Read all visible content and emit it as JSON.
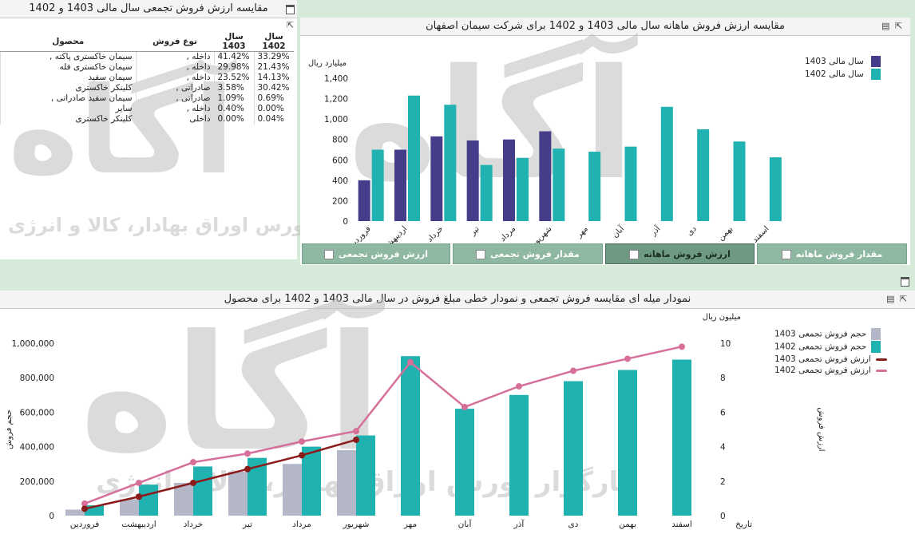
{
  "colors": {
    "c1403": "#453d8a",
    "c1402": "#20b2b0",
    "grey1403": "#b4b7c8",
    "line1403": "#8b1a1a",
    "line1402": "#d6709a",
    "tab_bg": "#8fb8a2"
  },
  "watermark": {
    "logo": "آگاه",
    "text": "کارگزار بورس اوراق بهادار، کالا و انرژی"
  },
  "left_panel": {
    "title": "مقایسه ارزش فروش تجمعی سال مالی 1403 و 1402",
    "columns": [
      "محصول",
      "نوع فروش",
      "سال 1403",
      "سال 1402"
    ],
    "rows": [
      {
        "product": "سیمان خاکستری پاکته ,",
        "type": "داخله ,",
        "v1403": "41.42%",
        "v1402": "33.29%"
      },
      {
        "product": "سیمان خاکستری فله",
        "type": "داخله ,",
        "v1403": "29.98%",
        "v1402": "21.43%"
      },
      {
        "product": "سیمان سفید",
        "type": "داخله ,",
        "v1403": "23.52%",
        "v1402": "14.13%"
      },
      {
        "product": "کلینکر خاکستری",
        "type": "صادراتی ,",
        "v1403": "3.58%",
        "v1402": "30.42%"
      },
      {
        "product": "سیمان سفید صادراتی ,",
        "type": "صادراتی ,",
        "v1403": "1.09%",
        "v1402": "0.69%"
      },
      {
        "product": "سایر",
        "type": "داخله ,",
        "v1403": "0.40%",
        "v1402": "0.00%"
      },
      {
        "product": "کلینکر خاکستری",
        "type": "داخلی",
        "v1403": "0.00%",
        "v1402": "0.04%"
      }
    ]
  },
  "right_panel": {
    "title": "مقایسه ارزش فروش ماهانه سال مالی 1403 و 1402 برای شرکت سیمان اصفهان",
    "tabs": [
      "مقدار فروش ماهانه",
      "ارزش فروش ماهانه",
      "مقدار فروش تجمعی",
      "ارزش فروش تجمعی"
    ],
    "active_tab": "ارزش فروش ماهانه"
  },
  "bottom_panel": {
    "title": "نمودار میله ای مقایسه فروش تجمعی و نمودار خطی مبلغ فروش در سال مالی 1403 و 1402 برای محصول"
  },
  "chart_data": [
    {
      "type": "bar",
      "ylabel": "میلیارد ریال",
      "xlabel": "تاریخ",
      "ylim": [
        0,
        1400
      ],
      "yticks": [
        "0",
        "200",
        "400",
        "600",
        "800",
        "1,000",
        "1,200",
        "1,400"
      ],
      "categories": [
        "فروردین",
        "اردیبهشت",
        "خرداد",
        "تیر",
        "مرداد",
        "شهریور",
        "مهر",
        "آبان",
        "آذر",
        "دی",
        "بهمن",
        "اسفند"
      ],
      "series": [
        {
          "name": "سال مالی 1403",
          "values": [
            400,
            700,
            830,
            790,
            800,
            880,
            null,
            null,
            null,
            null,
            null,
            null
          ]
        },
        {
          "name": "سال مالی 1402",
          "values": [
            700,
            1230,
            1140,
            550,
            620,
            710,
            680,
            730,
            1120,
            900,
            780,
            625
          ]
        }
      ],
      "legend": "top-right"
    },
    {
      "type": "bar",
      "ylabel_left": "حجم فروش",
      "ylabel_right": "ارزش فروش",
      "unit_right": "میلیون ریال",
      "xlabel": "تاریخ",
      "ylim_left": [
        0,
        1000000
      ],
      "ylim_right": [
        0,
        10
      ],
      "yticks_left": [
        "0",
        "200,000",
        "400,000",
        "600,000",
        "800,000",
        "1,000,000"
      ],
      "yticks_right": [
        "0",
        "2",
        "4",
        "6",
        "8",
        "10"
      ],
      "categories": [
        "فروردین",
        "اردیبهشت",
        "خرداد",
        "تیر",
        "مرداد",
        "شهریور",
        "مهر",
        "آبان",
        "آذر",
        "دی",
        "بهمن",
        "اسفند"
      ],
      "series": [
        {
          "name": "حجم فروش تجمعی 1403",
          "kind": "bar",
          "values": [
            35000,
            95000,
            190000,
            255000,
            300000,
            380000,
            null,
            null,
            null,
            null,
            null,
            null
          ]
        },
        {
          "name": "حجم فروش تجمعی 1402",
          "kind": "bar",
          "values": [
            60000,
            180000,
            285000,
            335000,
            400000,
            465000,
            925000,
            620000,
            700000,
            780000,
            845000,
            905000
          ]
        },
        {
          "name": "ارزش فروش تجمعی 1403",
          "kind": "line",
          "values": [
            0.4,
            1.1,
            1.9,
            2.7,
            3.5,
            4.4,
            null,
            null,
            null,
            null,
            null,
            null
          ]
        },
        {
          "name": "ارزش فروش تجمعی 1402",
          "kind": "line",
          "values": [
            0.7,
            1.9,
            3.1,
            3.6,
            4.3,
            4.9,
            8.9,
            6.3,
            7.5,
            8.4,
            9.1,
            9.8
          ]
        }
      ],
      "legend": "top-right"
    }
  ]
}
